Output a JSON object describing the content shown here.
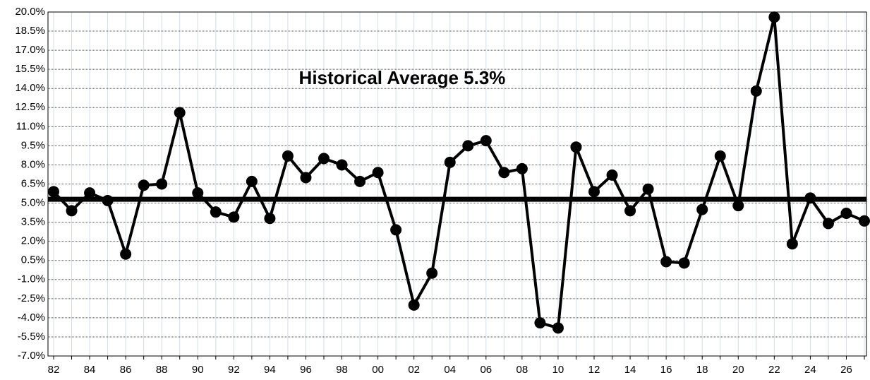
{
  "chart_data": {
    "type": "line",
    "annotation": "Historical Average  5.3%",
    "average": 5.3,
    "categories": [
      "82",
      null,
      "84",
      null,
      "86",
      null,
      "88",
      null,
      "90",
      null,
      "92",
      null,
      "94",
      null,
      "96",
      null,
      "98",
      null,
      "00",
      null,
      "02",
      null,
      "04",
      null,
      "06",
      null,
      "08",
      null,
      "10",
      null,
      "12",
      null,
      "14",
      null,
      "16",
      null,
      "18",
      null,
      "20",
      null,
      "22",
      null,
      "24",
      null,
      "26",
      null
    ],
    "values": [
      5.9,
      4.4,
      5.8,
      5.2,
      1.0,
      6.4,
      6.5,
      12.1,
      5.8,
      4.3,
      3.9,
      6.7,
      3.8,
      8.7,
      7.0,
      8.5,
      8.0,
      6.7,
      7.4,
      2.9,
      -3.0,
      -0.5,
      8.2,
      9.5,
      9.9,
      7.4,
      7.7,
      -4.4,
      -4.8,
      9.4,
      5.9,
      7.2,
      4.4,
      6.1,
      0.4,
      0.3,
      4.5,
      8.7,
      4.8,
      13.8,
      19.6,
      1.8,
      5.4,
      3.4,
      4.2,
      3.6
    ],
    "color": "#000000",
    "ylim": [
      -7.0,
      20.0
    ],
    "yticks": [
      {
        "value": -7.0,
        "label": "-7.0%"
      },
      {
        "value": -5.5,
        "label": "-5.5%"
      },
      {
        "value": -4.0,
        "label": "-4.0%"
      },
      {
        "value": -2.5,
        "label": "-2.5%"
      },
      {
        "value": -1.0,
        "label": "-1.0%"
      },
      {
        "value": 0.5,
        "label": "0.5%"
      },
      {
        "value": 2.0,
        "label": "2.0%"
      },
      {
        "value": 3.5,
        "label": "3.5%"
      },
      {
        "value": 5.0,
        "label": "5.0%"
      },
      {
        "value": 6.5,
        "label": "6.5%"
      },
      {
        "value": 8.0,
        "label": "8.0%"
      },
      {
        "value": 9.5,
        "label": "9.5%"
      },
      {
        "value": 11.0,
        "label": "11.0%"
      },
      {
        "value": 12.5,
        "label": "12.5%"
      },
      {
        "value": 14.0,
        "label": "14.0%"
      },
      {
        "value": 15.5,
        "label": "15.5%"
      },
      {
        "value": 17.0,
        "label": "17.0%"
      },
      {
        "value": 18.5,
        "label": "18.5%"
      },
      {
        "value": 20.0,
        "label": "20.0%"
      }
    ],
    "grid": true
  }
}
